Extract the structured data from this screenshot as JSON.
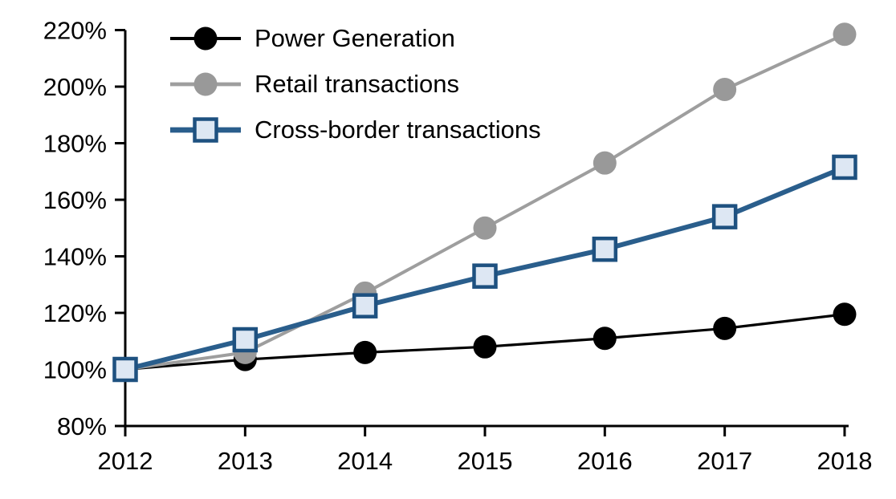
{
  "chart_data": {
    "type": "line",
    "title": "",
    "xlabel": "",
    "ylabel": "",
    "x": [
      2012,
      2013,
      2014,
      2015,
      2016,
      2017,
      2018
    ],
    "xtick_labels": [
      "2012",
      "2013",
      "2014",
      "2015",
      "2016",
      "2017",
      "2018"
    ],
    "ylim": [
      80,
      220
    ],
    "ytick_step": 20,
    "ytick_labels": [
      "80%",
      "100%",
      "120%",
      "140%",
      "160%",
      "180%",
      "200%",
      "220%"
    ],
    "grid": false,
    "legend_position": "top-left",
    "axis_color": "#000000",
    "series": [
      {
        "name": "Power Generation",
        "marker": "circle",
        "line_color": "#000000",
        "marker_color": "#000000",
        "values": [
          100,
          103.5,
          106,
          108,
          111,
          114.5,
          119.5
        ]
      },
      {
        "name": "Retail transactions",
        "marker": "circle",
        "line_color": "#9E9E9E",
        "marker_color": "#999999",
        "values": [
          100,
          106,
          127,
          150,
          173,
          199,
          218.5
        ]
      },
      {
        "name": "Cross-border transactions",
        "marker": "square",
        "line_color": "#2A5E8C",
        "marker_color": "#DDE7F3",
        "marker_border_color": "#1E5180",
        "values": [
          100,
          110.5,
          122.5,
          133,
          142.5,
          154,
          171.5
        ]
      }
    ]
  }
}
